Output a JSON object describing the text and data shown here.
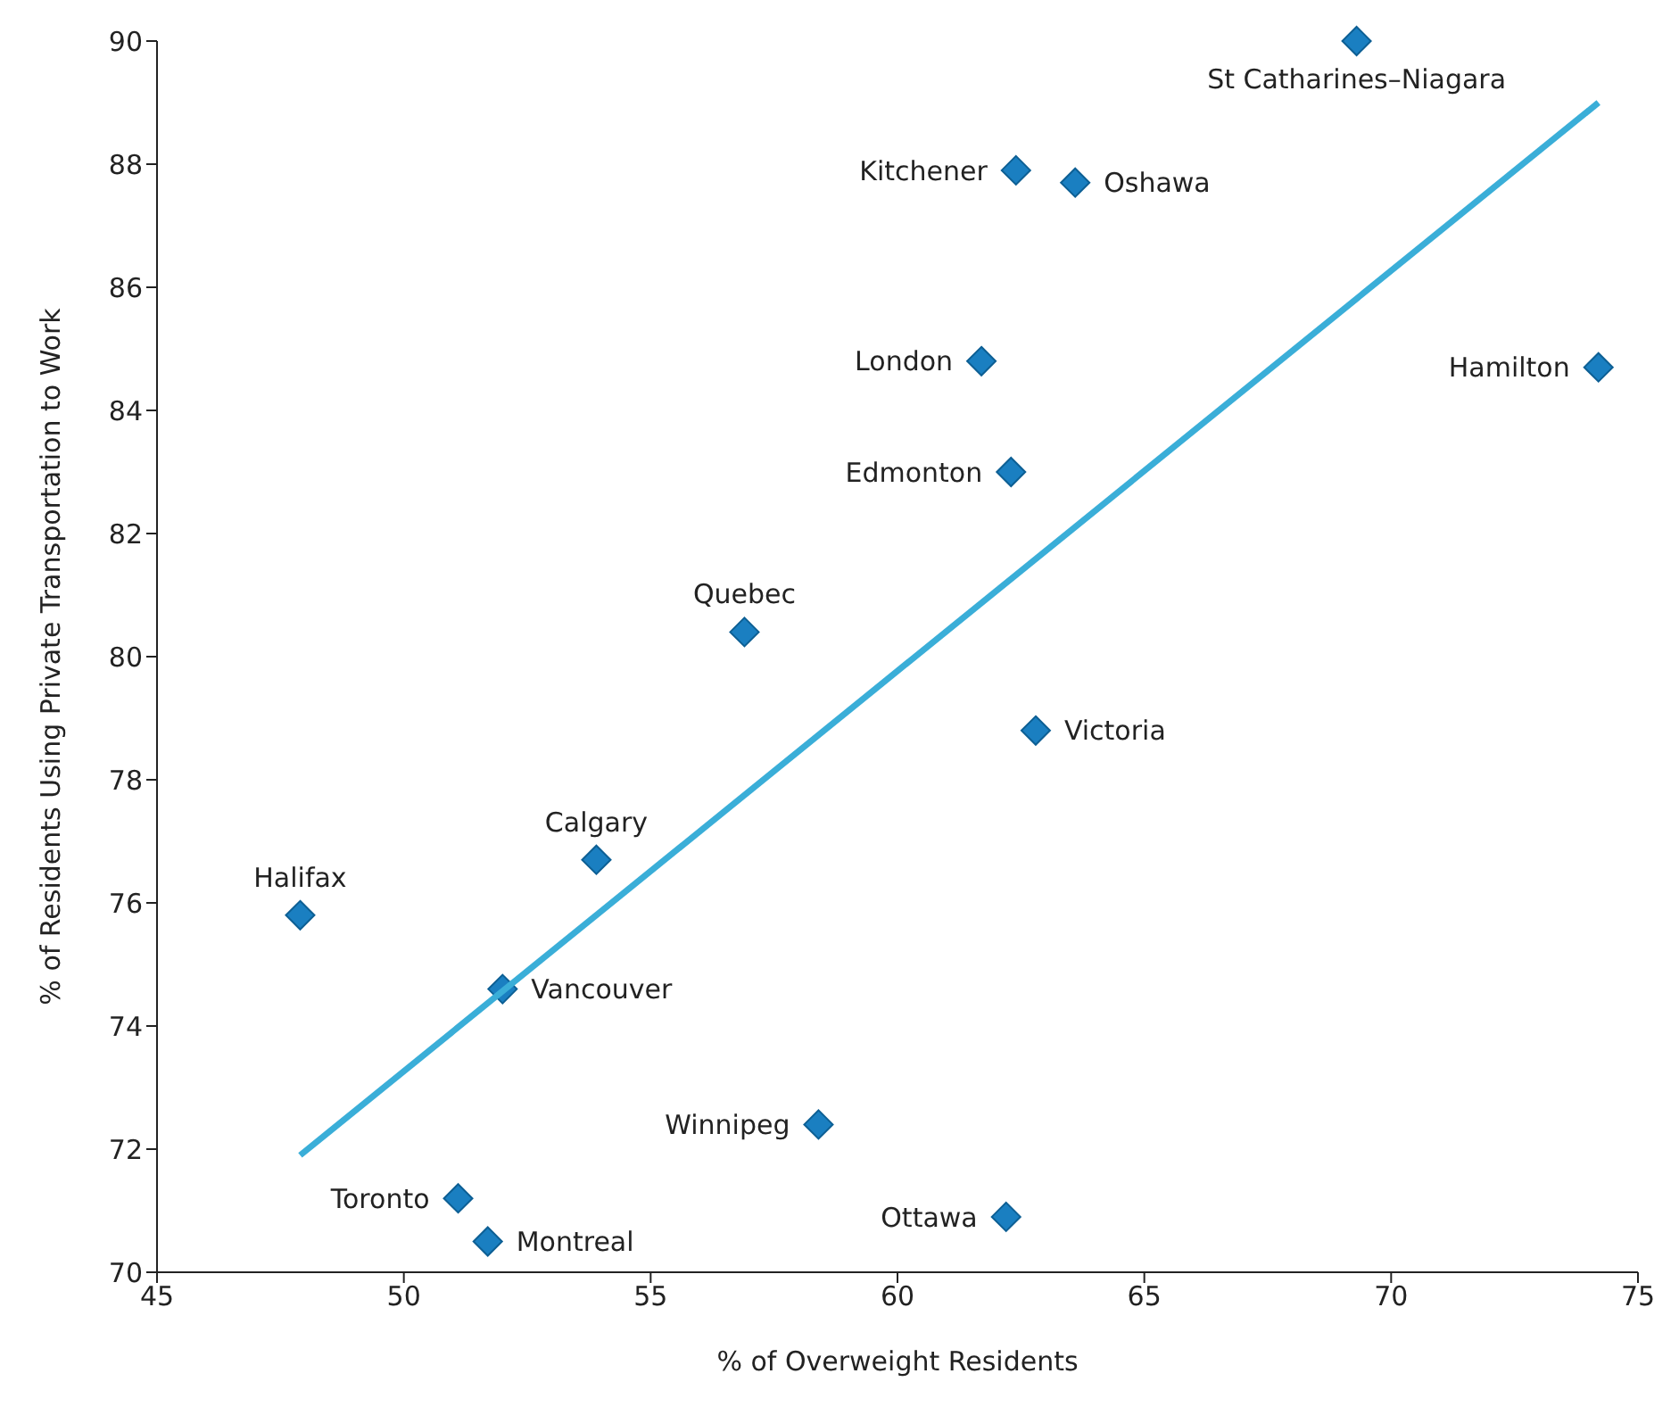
{
  "chart_data": {
    "type": "scatter",
    "xlabel": "% of Overweight Residents",
    "ylabel": "% of Residents Using Private Transportation to Work",
    "xlim": [
      45,
      75
    ],
    "xticks": [
      45,
      50,
      55,
      60,
      65,
      70,
      75
    ],
    "ylim": [
      70,
      90
    ],
    "yticks": [
      70,
      72,
      74,
      76,
      78,
      80,
      82,
      84,
      86,
      88,
      90
    ],
    "grid": false,
    "legend": false,
    "marker": "diamond",
    "series": [
      {
        "type": "scatter",
        "color": "#1a7fc1",
        "x": [
          69.3,
          62.4,
          63.6,
          61.7,
          74.2,
          62.3,
          56.9,
          62.8,
          53.9,
          47.9,
          52.0,
          58.4,
          51.1,
          51.7,
          62.2
        ],
        "values": [
          90.0,
          87.9,
          87.7,
          84.8,
          84.7,
          83.0,
          80.4,
          78.8,
          76.7,
          75.8,
          74.6,
          72.4,
          71.2,
          70.5,
          70.9
        ]
      },
      {
        "type": "line",
        "color": "#3aaed8",
        "marker": "none",
        "x": [
          47.9,
          74.2
        ],
        "values": [
          71.9,
          89.0
        ]
      }
    ],
    "annotations": [
      {
        "text": "St Catharines–Niagara",
        "x": 69.3,
        "y": 90.0
      },
      {
        "text": "Kitchener",
        "x": 62.4,
        "y": 87.9
      },
      {
        "text": "Oshawa",
        "x": 63.6,
        "y": 87.7
      },
      {
        "text": "London",
        "x": 61.7,
        "y": 84.8
      },
      {
        "text": "Hamilton",
        "x": 74.2,
        "y": 84.7
      },
      {
        "text": "Edmonton",
        "x": 62.3,
        "y": 83.0
      },
      {
        "text": "Quebec",
        "x": 56.9,
        "y": 80.4
      },
      {
        "text": "Victoria",
        "x": 62.8,
        "y": 78.8
      },
      {
        "text": "Calgary",
        "x": 53.9,
        "y": 76.7
      },
      {
        "text": "Halifax",
        "x": 47.9,
        "y": 75.8
      },
      {
        "text": "Vancouver",
        "x": 52.0,
        "y": 74.6
      },
      {
        "text": "Winnipeg",
        "x": 58.4,
        "y": 72.4
      },
      {
        "text": "Toronto",
        "x": 51.1,
        "y": 71.2
      },
      {
        "text": "Montreal",
        "x": 51.7,
        "y": 70.5
      },
      {
        "text": "Ottawa",
        "x": 62.2,
        "y": 70.9
      }
    ]
  }
}
